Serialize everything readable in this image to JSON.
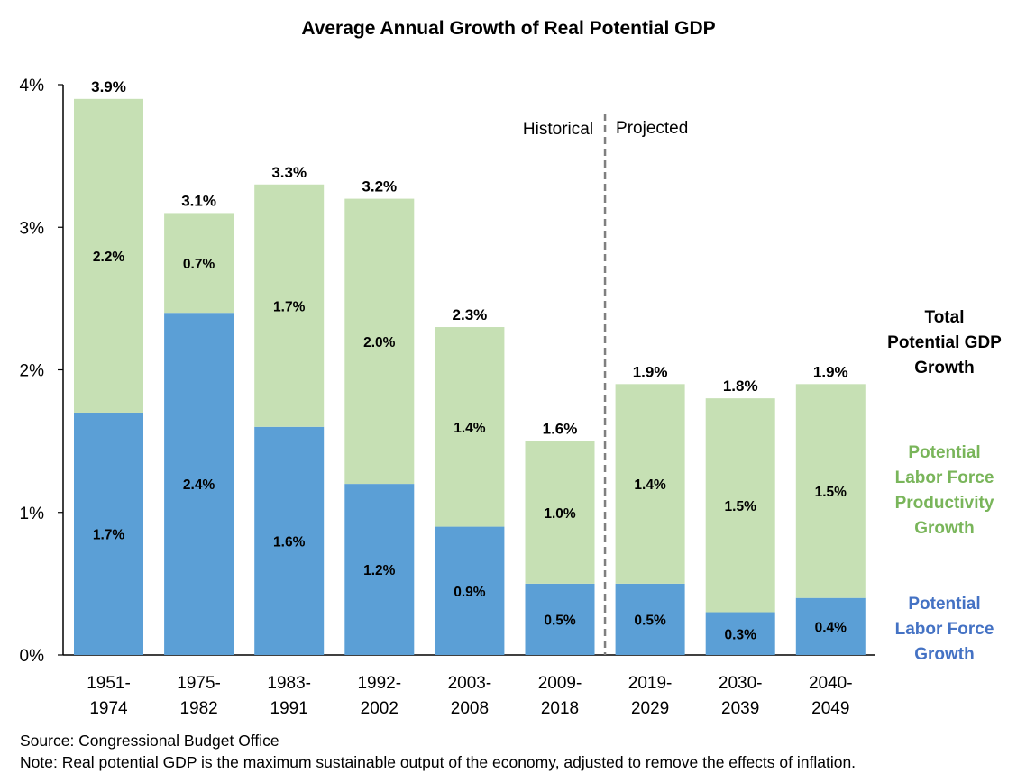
{
  "chart_data": {
    "type": "bar",
    "stacked": true,
    "title": "Average Annual Growth of Real Potential GDP",
    "categories": [
      [
        "1951-",
        "1974"
      ],
      [
        "1975-",
        "1982"
      ],
      [
        "1983-",
        "1991"
      ],
      [
        "1992-",
        "2002"
      ],
      [
        "2003-",
        "2008"
      ],
      [
        "2009-",
        "2018"
      ],
      [
        "2019-",
        "2029"
      ],
      [
        "2030-",
        "2039"
      ],
      [
        "2040-",
        "2049"
      ]
    ],
    "series": [
      {
        "name": "Potential Labor Force Growth",
        "color": "#5b9fd6",
        "values": [
          1.7,
          2.4,
          1.6,
          1.2,
          0.9,
          0.5,
          0.5,
          0.3,
          0.4
        ],
        "labels": [
          "1.7%",
          "2.4%",
          "1.6%",
          "1.2%",
          "0.9%",
          "0.5%",
          "0.5%",
          "0.3%",
          "0.4%"
        ]
      },
      {
        "name": "Potential Labor Force Productivity Growth",
        "color": "#c6e0b4",
        "values": [
          2.2,
          0.7,
          1.7,
          2.0,
          1.4,
          1.0,
          1.4,
          1.5,
          1.5
        ],
        "labels": [
          "2.2%",
          "0.7%",
          "1.7%",
          "2.0%",
          "1.4%",
          "1.0%",
          "1.4%",
          "1.5%",
          "1.5%"
        ]
      }
    ],
    "totals": [
      "3.9%",
      "3.1%",
      "3.3%",
      "3.2%",
      "2.3%",
      "1.6%",
      "1.9%",
      "1.8%",
      "1.9%"
    ],
    "yticks": [
      0,
      1,
      2,
      3,
      4
    ],
    "ytick_labels": [
      "0%",
      "1%",
      "2%",
      "3%",
      "4%"
    ],
    "ylim": [
      0,
      4
    ],
    "divider": {
      "after_index": 5,
      "left_label": "Historical",
      "right_label": "Projected"
    },
    "xlabel": "",
    "ylabel": ""
  },
  "legend": {
    "total": [
      "Total",
      "Potential GDP",
      "Growth"
    ],
    "productivity": [
      "Potential",
      "Labor Force",
      "Productivity",
      "Growth"
    ],
    "labor": [
      "Potential",
      "Labor Force",
      "Growth"
    ]
  },
  "colors": {
    "labor_bar": "#5b9fd6",
    "productivity_bar": "#c6e0b4",
    "productivity_text": "#79b55a",
    "labor_text": "#4472c4"
  },
  "footer": {
    "source": "Source: Congressional Budget Office",
    "note": "Note: Real potential GDP is the maximum sustainable output of the economy, adjusted to remove the effects of inflation."
  }
}
